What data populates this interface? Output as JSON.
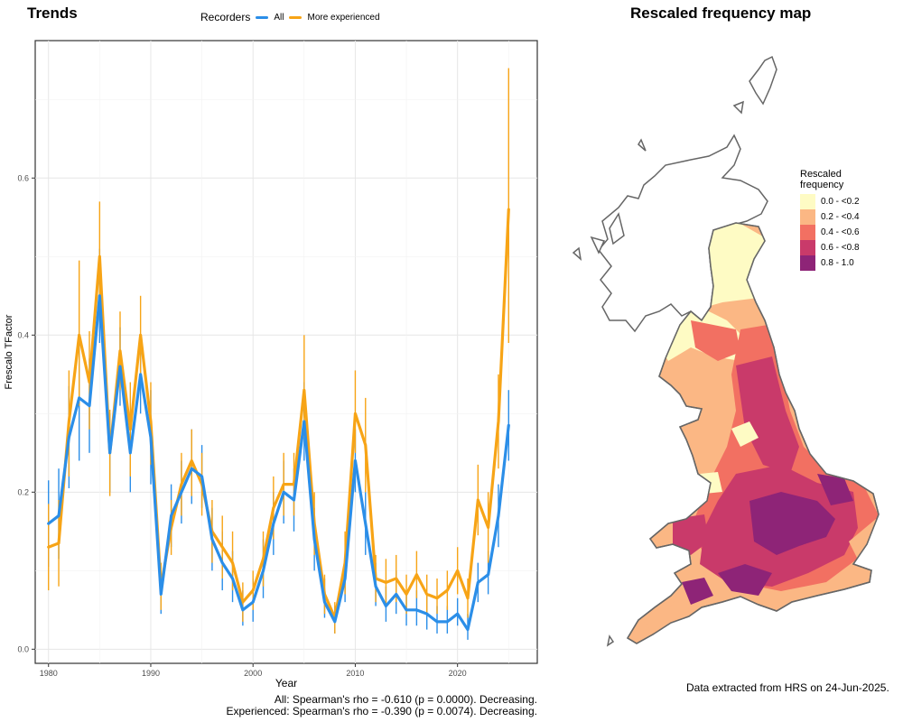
{
  "trend_title": "Trends",
  "map_title": "Rescaled frequency map",
  "legend": {
    "title": "Recorders",
    "items": [
      {
        "label": "All",
        "color": "#2b8ee8"
      },
      {
        "label": "More experienced",
        "color": "#f7a416"
      }
    ]
  },
  "stats": {
    "all": "All: Spearman's rho = -0.610 (p = 0.0000). Decreasing.",
    "experienced": "Experienced: Spearman's rho = -0.390 (p = 0.0074). Decreasing."
  },
  "chart_data": {
    "type": "line",
    "xlabel": "Year",
    "ylabel": "Frescalo TFactor",
    "xlim": [
      1978.7,
      2027.8
    ],
    "ylim": [
      -0.018,
      0.775
    ],
    "xticks": [
      1980,
      1990,
      2000,
      2010,
      2020
    ],
    "yticks": [
      0.0,
      0.2,
      0.4,
      0.6
    ],
    "ytick_labels": [
      "0.0",
      "0.2",
      "0.4",
      "0.6"
    ],
    "grid": true,
    "legend_position": "top",
    "x": [
      1980,
      1981,
      1982,
      1983,
      1984,
      1985,
      1986,
      1987,
      1988,
      1989,
      1990,
      1991,
      1992,
      1993,
      1994,
      1995,
      1996,
      1997,
      1998,
      1999,
      2000,
      2001,
      2002,
      2003,
      2004,
      2005,
      2006,
      2007,
      2008,
      2009,
      2010,
      2011,
      2012,
      2013,
      2014,
      2015,
      2016,
      2017,
      2018,
      2019,
      2020,
      2021,
      2022,
      2023,
      2024,
      2025
    ],
    "series": [
      {
        "name": "All",
        "color": "#2b8ee8",
        "values": [
          0.16,
          0.17,
          0.27,
          0.32,
          0.31,
          0.45,
          0.25,
          0.36,
          0.25,
          0.35,
          0.27,
          0.07,
          0.17,
          0.2,
          0.23,
          0.22,
          0.14,
          0.11,
          0.09,
          0.05,
          0.06,
          0.1,
          0.16,
          0.2,
          0.19,
          0.29,
          0.14,
          0.06,
          0.035,
          0.09,
          0.24,
          0.16,
          0.08,
          0.055,
          0.07,
          0.05,
          0.05,
          0.045,
          0.035,
          0.035,
          0.045,
          0.025,
          0.085,
          0.095,
          0.17,
          0.285
        ],
        "lower": [
          0.105,
          0.115,
          0.205,
          0.24,
          0.25,
          0.39,
          0.2,
          0.31,
          0.2,
          0.3,
          0.21,
          0.045,
          0.13,
          0.16,
          0.185,
          0.18,
          0.1,
          0.075,
          0.06,
          0.03,
          0.035,
          0.065,
          0.12,
          0.16,
          0.15,
          0.24,
          0.1,
          0.04,
          0.02,
          0.06,
          0.2,
          0.12,
          0.055,
          0.035,
          0.045,
          0.03,
          0.03,
          0.025,
          0.02,
          0.02,
          0.03,
          0.012,
          0.06,
          0.07,
          0.13,
          0.24
        ],
        "upper": [
          0.215,
          0.23,
          0.335,
          0.39,
          0.37,
          0.51,
          0.3,
          0.41,
          0.3,
          0.4,
          0.33,
          0.1,
          0.21,
          0.24,
          0.28,
          0.26,
          0.18,
          0.15,
          0.125,
          0.075,
          0.09,
          0.14,
          0.2,
          0.24,
          0.23,
          0.34,
          0.18,
          0.09,
          0.055,
          0.12,
          0.28,
          0.2,
          0.11,
          0.08,
          0.1,
          0.075,
          0.075,
          0.07,
          0.055,
          0.055,
          0.065,
          0.045,
          0.11,
          0.125,
          0.21,
          0.33
        ]
      },
      {
        "name": "More experienced",
        "color": "#f7a416",
        "values": [
          0.13,
          0.135,
          0.29,
          0.4,
          0.34,
          0.5,
          0.25,
          0.38,
          0.28,
          0.4,
          0.29,
          0.08,
          0.155,
          0.21,
          0.24,
          0.21,
          0.15,
          0.13,
          0.11,
          0.06,
          0.075,
          0.115,
          0.18,
          0.21,
          0.21,
          0.33,
          0.16,
          0.07,
          0.04,
          0.11,
          0.3,
          0.26,
          0.09,
          0.085,
          0.09,
          0.07,
          0.095,
          0.07,
          0.065,
          0.075,
          0.1,
          0.065,
          0.19,
          0.155,
          0.29,
          0.56
        ],
        "lower": [
          0.075,
          0.08,
          0.22,
          0.31,
          0.28,
          0.43,
          0.195,
          0.33,
          0.22,
          0.345,
          0.235,
          0.05,
          0.12,
          0.17,
          0.195,
          0.17,
          0.11,
          0.09,
          0.075,
          0.035,
          0.05,
          0.08,
          0.14,
          0.17,
          0.17,
          0.27,
          0.12,
          0.045,
          0.02,
          0.07,
          0.25,
          0.2,
          0.06,
          0.055,
          0.06,
          0.045,
          0.065,
          0.045,
          0.045,
          0.05,
          0.07,
          0.04,
          0.145,
          0.11,
          0.23,
          0.39
        ],
        "upper": [
          0.185,
          0.19,
          0.355,
          0.495,
          0.405,
          0.57,
          0.305,
          0.43,
          0.34,
          0.45,
          0.34,
          0.11,
          0.19,
          0.25,
          0.28,
          0.25,
          0.19,
          0.17,
          0.15,
          0.085,
          0.1,
          0.15,
          0.22,
          0.25,
          0.25,
          0.4,
          0.2,
          0.095,
          0.06,
          0.15,
          0.355,
          0.32,
          0.12,
          0.115,
          0.12,
          0.095,
          0.125,
          0.095,
          0.09,
          0.1,
          0.13,
          0.09,
          0.235,
          0.2,
          0.35,
          0.74
        ]
      }
    ]
  },
  "map_legend": {
    "title_line1": "Rescaled",
    "title_line2": "frequency",
    "items": [
      {
        "label": "0.0 - <0.2",
        "color": "#fefbc4"
      },
      {
        "label": "0.2 - <0.4",
        "color": "#fbb784"
      },
      {
        "label": "0.4 - <0.6",
        "color": "#f27062"
      },
      {
        "label": "0.6 - <0.8",
        "color": "#c93a6a"
      },
      {
        "label": "0.8 - 1.0",
        "color": "#8e2477"
      }
    ]
  },
  "extract_note": "Data extracted from HRS on 24-Jun-2025."
}
